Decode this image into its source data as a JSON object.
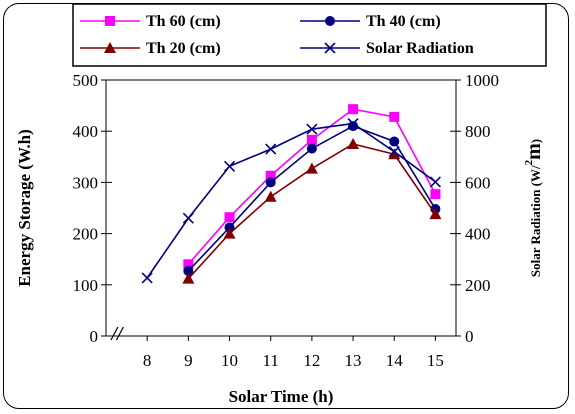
{
  "chart_data": {
    "type": "line",
    "x": [
      8,
      9,
      10,
      11,
      12,
      13,
      14,
      15
    ],
    "xlabel": "Solar Time (h)",
    "ylabel": "Energy Storage (W.h)",
    "ylabel_right": {
      "main": "Solar Radiation (W/",
      "sup": "2",
      "unit": "m"
    },
    "ylim": [
      0,
      500
    ],
    "y2lim": [
      0,
      1000
    ],
    "yticks": [
      0,
      100,
      200,
      300,
      400,
      500
    ],
    "y2ticks": [
      0,
      200,
      400,
      600,
      800,
      1000
    ],
    "axis_break": "//",
    "legend_position": "top",
    "series": [
      {
        "name": "Th 60 (cm)",
        "axis": "left",
        "color": "#ff00ff",
        "marker": "square",
        "x": [
          9,
          10,
          11,
          12,
          13,
          14,
          15
        ],
        "values": [
          140,
          232,
          313,
          383,
          443,
          428,
          277
        ]
      },
      {
        "name": "Th 40 (cm)",
        "axis": "left",
        "color": "#000080",
        "marker": "circle",
        "x": [
          9,
          10,
          11,
          12,
          13,
          14,
          15
        ],
        "values": [
          127,
          212,
          300,
          366,
          410,
          380,
          248
        ]
      },
      {
        "name": "Th 20 (cm)",
        "axis": "left",
        "color": "#800000",
        "marker": "triangle",
        "x": [
          9,
          10,
          11,
          12,
          13,
          14,
          15
        ],
        "values": [
          112,
          200,
          272,
          327,
          375,
          355,
          238
        ]
      },
      {
        "name": "Solar Radiation",
        "axis": "right",
        "color": "#000080",
        "marker": "x",
        "x": [
          8,
          9,
          10,
          11,
          12,
          13,
          14,
          15
        ],
        "values": [
          227,
          460,
          663,
          730,
          808,
          830,
          720,
          602
        ]
      }
    ]
  }
}
